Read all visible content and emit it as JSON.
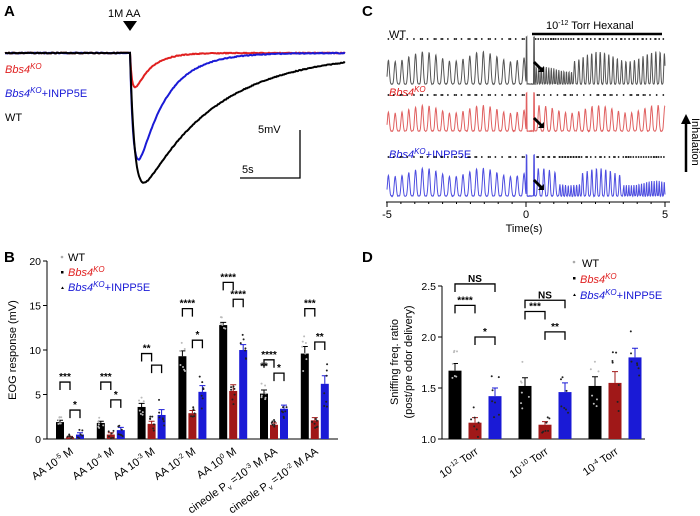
{
  "colors": {
    "wt": "#000000",
    "ko": "#b22222",
    "ko_bar": "#a01818",
    "inpp5e": "#1a1ad6",
    "ko_label": "#e02020",
    "wt_trace_c": "#555555",
    "ko_trace_c": "#e06060",
    "inpp5e_trace_c": "#4d4de0",
    "wt_dots": "#aaaaaa"
  },
  "genotypes": {
    "wt": "WT",
    "ko_base": "Bbs4",
    "ko_sup": "KO",
    "inpp5e_suffix": "+INPP5E"
  },
  "chart_data": [
    {
      "panel": "A",
      "type": "line",
      "stimulus_label": "1M AA",
      "scale_bar": {
        "y_label": "5mV",
        "x_label": "5s"
      },
      "series": [
        {
          "key": "ko",
          "peak_response_mV": 3.6
        },
        {
          "key": "inpp5e",
          "peak_response_mV": 11.1
        },
        {
          "key": "wt",
          "peak_response_mV": 13.5
        }
      ]
    },
    {
      "panel": "B",
      "type": "bar",
      "ylabel": "EOG response (mV)",
      "ylim": [
        0,
        20
      ],
      "yticks": [
        "0",
        "5",
        "10",
        "15",
        "20"
      ],
      "legend_placement": "top-left",
      "categories": [
        {
          "pre": "AA 10",
          "sup": "-5",
          "post": " M"
        },
        {
          "pre": "AA 10",
          "sup": "-4",
          "post": " M"
        },
        {
          "pre": "AA 10",
          "sup": "-3",
          "post": " M"
        },
        {
          "pre": "AA 10",
          "sup": "-2",
          "post": " M"
        },
        {
          "pre": "AA 10",
          "sup": "0",
          "post": " M"
        },
        {
          "pre": "cineole P",
          "sub": "v",
          "mid": " =10",
          "sup": "-3",
          "post": " M AA"
        },
        {
          "pre": "cineole P",
          "sub": "v",
          "mid": " =10",
          "sup": "-2",
          "post": " M AA"
        }
      ],
      "series": [
        {
          "key": "wt",
          "values": [
            1.9,
            1.8,
            3.6,
            9.3,
            12.8,
            5.1,
            9.6
          ],
          "error": [
            0.2,
            0.2,
            0.4,
            0.6,
            0.3,
            0.4,
            0.8
          ]
        },
        {
          "key": "ko",
          "values": [
            0.2,
            0.5,
            1.7,
            2.9,
            5.4,
            1.6,
            2.1
          ],
          "error": [
            0.1,
            0.2,
            0.3,
            0.3,
            0.7,
            0.2,
            0.3
          ]
        },
        {
          "key": "inpp5e",
          "values": [
            0.5,
            1.0,
            2.7,
            5.3,
            10.0,
            3.4,
            6.2
          ],
          "error": [
            0.2,
            0.3,
            0.6,
            0.7,
            0.6,
            0.4,
            0.9
          ]
        }
      ],
      "significance": [
        {
          "group": 0,
          "from": 0,
          "to": 1,
          "label": "***",
          "level": 6.4
        },
        {
          "group": 0,
          "from": 1,
          "to": 2,
          "label": "*",
          "level": 3.25
        },
        {
          "group": 1,
          "from": 0,
          "to": 1,
          "label": "***",
          "level": 6.4
        },
        {
          "group": 1,
          "from": 1,
          "to": 2,
          "label": "*",
          "level": 4.4
        },
        {
          "group": 2,
          "from": 0,
          "to": 1,
          "label": "**",
          "level": 9.6
        },
        {
          "group": 2,
          "from": 1,
          "to": 2,
          "label": "",
          "level": 8.3
        },
        {
          "group": 3,
          "from": 0,
          "to": 1,
          "label": "****",
          "level": 14.65
        },
        {
          "group": 3,
          "from": 1,
          "to": 2,
          "label": "*",
          "level": 11.1
        },
        {
          "group": 4,
          "from": 0,
          "to": 1,
          "label": "****",
          "level": 17.6
        },
        {
          "group": 4,
          "from": 1,
          "to": 2,
          "label": "****",
          "level": 15.7
        },
        {
          "group": 5,
          "from": 0,
          "to": 1,
          "label": "****",
          "level": 8.9
        },
        {
          "group": 5,
          "from": 1,
          "to": 2,
          "label": "*",
          "level": 7.4
        },
        {
          "group": 5,
          "from": 0,
          "to": 0,
          "label": "**",
          "level": 7.6
        },
        {
          "group": 6,
          "from": 0,
          "to": 1,
          "label": "***",
          "level": 14.65
        },
        {
          "group": 6,
          "from": 1,
          "to": 2,
          "label": "**",
          "level": 10.9
        }
      ]
    },
    {
      "panel": "C",
      "type": "line",
      "xlabel": "Time(s)",
      "xlim": [
        -5,
        5
      ],
      "xticks": [
        "-5",
        "0",
        "5"
      ],
      "stimulus": {
        "pre": "10",
        "sup": "-12",
        "post": " Torr Hexanal"
      },
      "side_label": "Inhalation",
      "series": [
        {
          "key": "wt"
        },
        {
          "key": "ko"
        },
        {
          "key": "inpp5e"
        }
      ]
    },
    {
      "panel": "D",
      "type": "bar",
      "ylabel_line1": "Sniffing freq. ratio",
      "ylabel_line2": "(post/pre odor delivery)",
      "ylim": [
        1.0,
        2.5
      ],
      "yticks": [
        "1.0",
        "1.5",
        "2.0",
        "2.5"
      ],
      "legend_placement": "top-right",
      "categories": [
        {
          "pre": "10",
          "sup": "-12",
          "post": " Torr"
        },
        {
          "pre": "10",
          "sup": "-10",
          "post": " Torr"
        },
        {
          "pre": "10",
          "sup": "-4",
          "post": " Torr"
        }
      ],
      "series": [
        {
          "key": "wt",
          "values": [
            1.67,
            1.52,
            1.52
          ],
          "error": [
            0.07,
            0.08,
            0.09
          ]
        },
        {
          "key": "ko",
          "values": [
            1.16,
            1.14,
            1.55
          ],
          "error": [
            0.05,
            0.03,
            0.11
          ]
        },
        {
          "key": "inpp5e",
          "values": [
            1.42,
            1.46,
            1.8
          ],
          "error": [
            0.08,
            0.09,
            0.09
          ]
        }
      ],
      "significance": [
        {
          "group": 0,
          "from": 0,
          "to": 2,
          "label": "NS",
          "level": 2.52
        },
        {
          "group": 0,
          "from": 0,
          "to": 1,
          "label": "****",
          "level": 2.31
        },
        {
          "group": 0,
          "from": 1,
          "to": 2,
          "label": "*",
          "level": 2.0
        },
        {
          "group": 1,
          "from": 0,
          "to": 2,
          "label": "NS",
          "level": 2.36
        },
        {
          "group": 1,
          "from": 0,
          "to": 1,
          "label": "***",
          "level": 2.25
        },
        {
          "group": 1,
          "from": 1,
          "to": 2,
          "label": "**",
          "level": 2.05
        }
      ]
    }
  ],
  "panel_letters": [
    "A",
    "B",
    "C",
    "D"
  ]
}
